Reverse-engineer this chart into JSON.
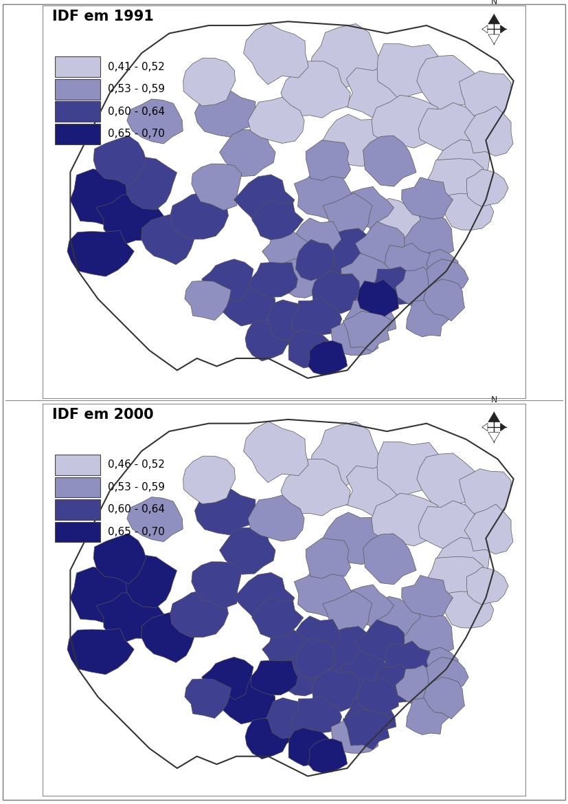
{
  "title1": "IDF em 1991",
  "title2": "IDF em 2000",
  "legend1_labels": [
    "0,41 - 0,52",
    "0,53 - 0,59",
    "0,60 - 0,64",
    "0,65 - 0,70"
  ],
  "legend2_labels": [
    "0,46 - 0,52",
    "0,53 - 0,59",
    "0,60 - 0,64",
    "0,65 - 0,70"
  ],
  "colors": [
    "#c5c5e0",
    "#9090c0",
    "#404090",
    "#1a1a78"
  ],
  "background": "#ffffff",
  "border_color": "#555555",
  "title_fontsize": 15,
  "legend_fontsize": 11,
  "panel_line_color": "#888888",
  "north_arrow_color": "#222222"
}
